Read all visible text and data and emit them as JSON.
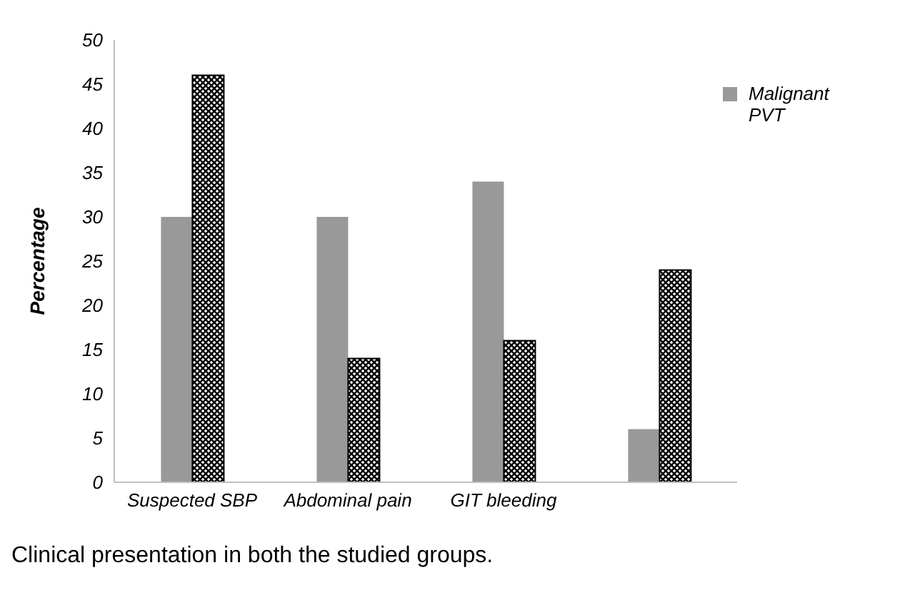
{
  "chart_data": {
    "type": "bar",
    "ylabel": "Percentage",
    "categories": [
      "Suspected SBP",
      "Abdominal pain",
      "GIT bleeding",
      null
    ],
    "series": [
      {
        "name": "Malignant PVT",
        "color": "#999999",
        "values": [
          30,
          30,
          34,
          6
        ]
      },
      {
        "color": "#000000",
        "values": [
          46,
          14,
          16,
          24
        ]
      }
    ],
    "ylim": [
      0,
      50
    ],
    "yticks": [
      0,
      5,
      10,
      15,
      20,
      25,
      30,
      35,
      40,
      45,
      50
    ],
    "legend": "top right",
    "annotations": [
      "Clinical presentation in both the studied groups."
    ]
  }
}
